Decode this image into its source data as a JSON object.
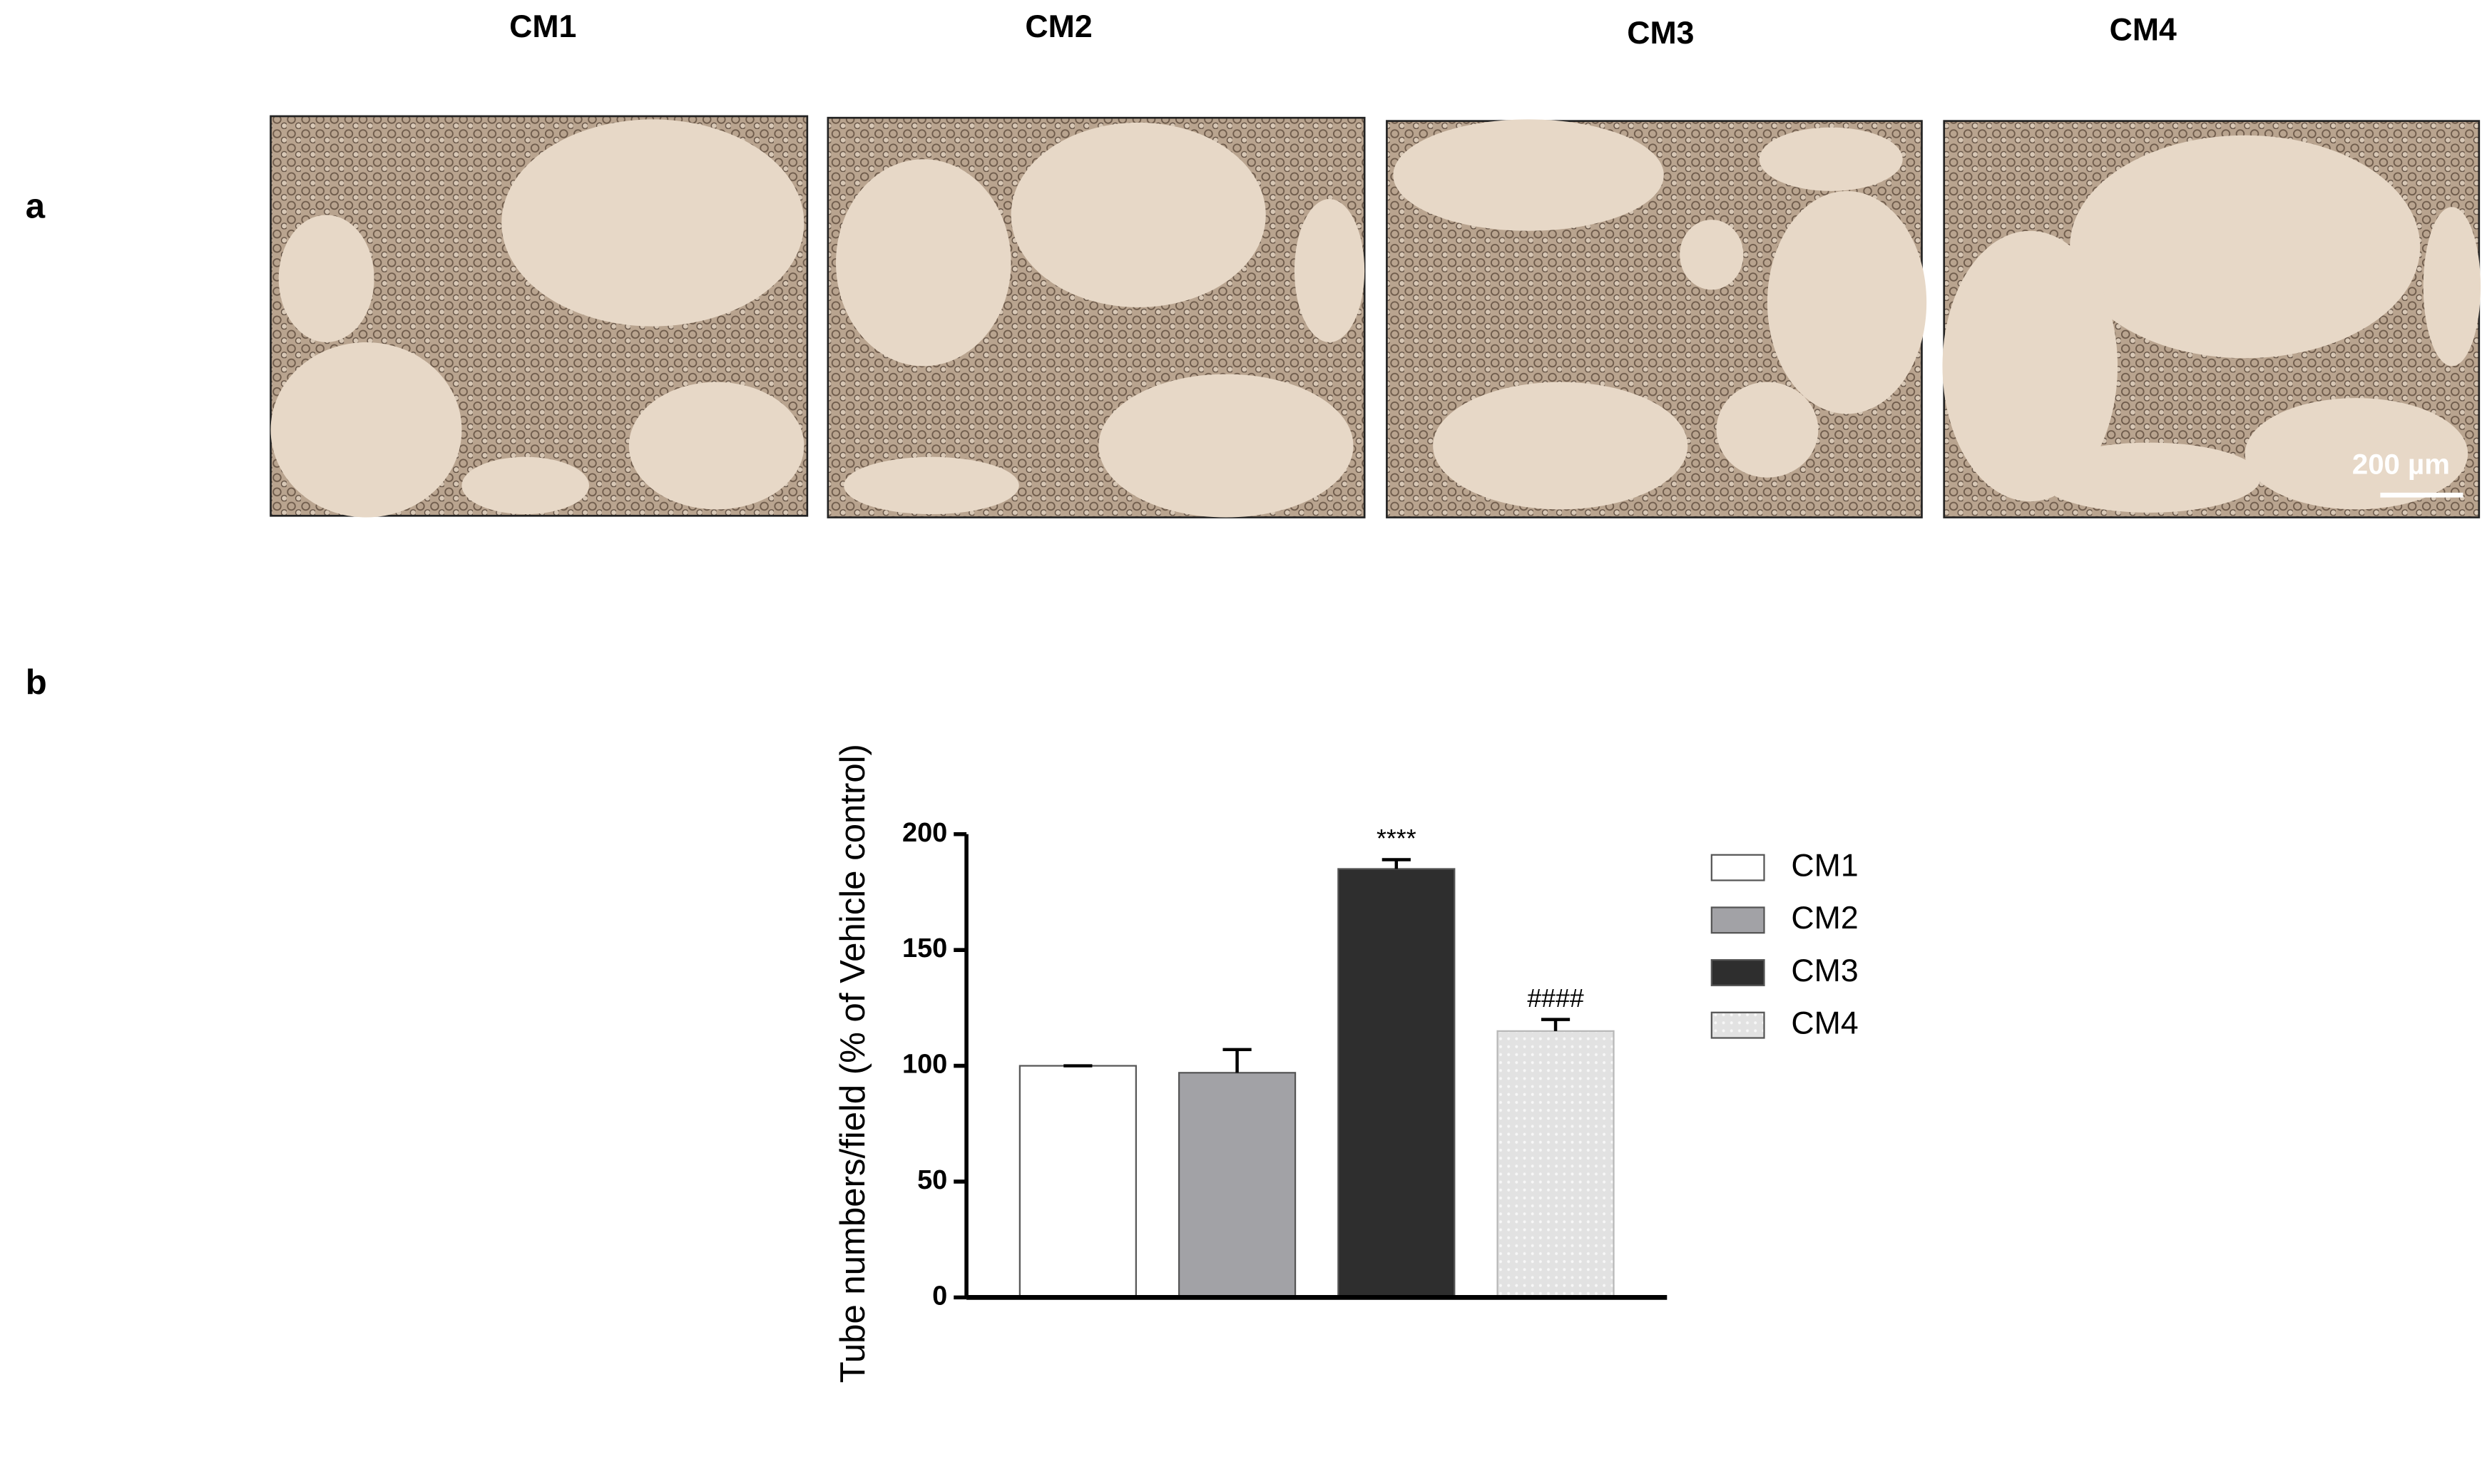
{
  "panel_labels": [
    "a",
    "b"
  ],
  "image_titles": [
    "CM1",
    "CM2",
    "CM3",
    "CM4"
  ],
  "scale_bar": "200 µm",
  "chart_data": {
    "type": "bar",
    "y_label": "Tube numbers/field (% of Vehicle control)",
    "categories": [
      "CM1",
      "CM2",
      "CM3",
      "CM4"
    ],
    "values": [
      100,
      97,
      185,
      115
    ],
    "errors": [
      0,
      10,
      4,
      5
    ],
    "colors": [
      "#ffffff",
      "#a2a2a6",
      "#2e2e2e",
      "#e2e2e2"
    ],
    "annotations": [
      null,
      null,
      "****",
      "####"
    ],
    "ylim": [
      0,
      200
    ],
    "yticks": [
      0,
      50,
      100,
      150,
      200
    ],
    "legend": "right"
  }
}
